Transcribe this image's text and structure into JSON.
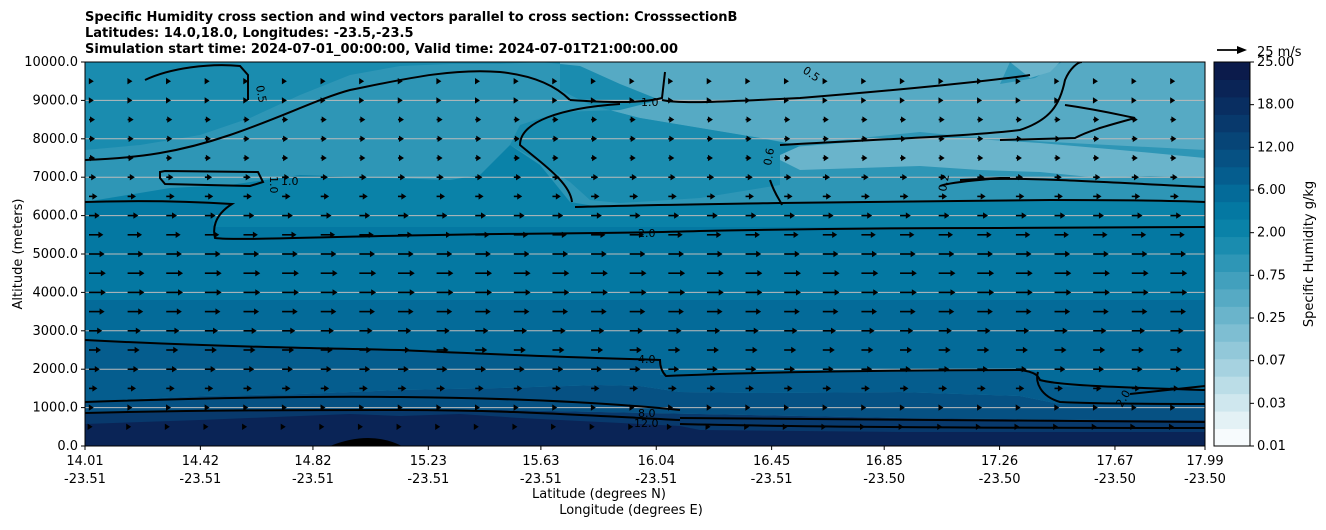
{
  "chart_data": {
    "type": "heatmap",
    "subtype": "filled-contour cross section with line contours and wind vectors",
    "title_lines": [
      "Specific Humidity cross section and wind vectors parallel to cross section: CrosssectionB",
      "Latitudes: 14.0,18.0, Longitudes: -23.5,-23.5",
      "Simulation start time: 2024-07-01_00:00:00, Valid time: 2024-07-01T21:00:00.00"
    ],
    "xlabel_lines": [
      "Latitude (degrees N)",
      "Longitude (degrees E)"
    ],
    "ylabel": "Altitude (meters)",
    "ylim": [
      0,
      10000
    ],
    "xlim": [
      14.01,
      17.99
    ],
    "y_ticks": [
      "0.0",
      "1000.0",
      "2000.0",
      "3000.0",
      "4000.0",
      "5000.0",
      "6000.0",
      "7000.0",
      "8000.0",
      "9000.0",
      "10000.0"
    ],
    "x_ticks": [
      {
        "lat": "14.01",
        "lon": "-23.51"
      },
      {
        "lat": "14.42",
        "lon": "-23.51"
      },
      {
        "lat": "14.82",
        "lon": "-23.51"
      },
      {
        "lat": "15.23",
        "lon": "-23.51"
      },
      {
        "lat": "15.63",
        "lon": "-23.51"
      },
      {
        "lat": "16.04",
        "lon": "-23.51"
      },
      {
        "lat": "16.45",
        "lon": "-23.51"
      },
      {
        "lat": "16.85",
        "lon": "-23.50"
      },
      {
        "lat": "17.26",
        "lon": "-23.50"
      },
      {
        "lat": "17.67",
        "lon": "-23.50"
      },
      {
        "lat": "17.99",
        "lon": "-23.50"
      }
    ],
    "grid": "horizontal",
    "colorbar": {
      "label": "Specific Humidity g/kg",
      "levels": [
        0.01,
        0.02,
        0.03,
        0.05,
        0.07,
        0.1,
        0.25,
        0.4,
        0.5,
        0.75,
        1.0,
        1.5,
        2.0,
        3.0,
        4.0,
        6.0,
        8.0,
        10.0,
        12.0,
        15.0,
        18.0,
        20.0,
        25.0
      ],
      "tick_labels": [
        "0.01",
        "0.03",
        "0.07",
        "0.25",
        "0.75",
        "2.00",
        "6.00",
        "12.00",
        "18.00",
        "25.00"
      ],
      "colors": [
        "#f7fbfd",
        "#e3f1f5",
        "#cfe7ee",
        "#bbdde7",
        "#a6d2e0",
        "#92c8d9",
        "#7ebed2",
        "#6ab4cb",
        "#56aac4",
        "#42a0bd",
        "#2e96b6",
        "#1a8caf",
        "#0a82a8",
        "#0478a2",
        "#046b99",
        "#055d8e",
        "#065183",
        "#074577",
        "#08396c",
        "#092e61",
        "#0a2456",
        "#0b1b4b"
      ]
    },
    "quiver_key": {
      "label": "25 m/s",
      "value": 25
    },
    "contour_labels": [
      "0.5",
      "0.5",
      "1.0",
      "1.0",
      "1.0",
      "0.6",
      "0.2",
      "2.0",
      "4.0",
      "8.0",
      "12.0",
      "2.0"
    ],
    "wind_u_by_altitude_m_s": [
      {
        "altitude": 500,
        "u": 3
      },
      {
        "altitude": 1000,
        "u": 4
      },
      {
        "altitude": 1500,
        "u": 7
      },
      {
        "altitude": 2000,
        "u": 9
      },
      {
        "altitude": 2500,
        "u": 10
      },
      {
        "altitude": 3000,
        "u": 11
      },
      {
        "altitude": 3500,
        "u": 13
      },
      {
        "altitude": 4000,
        "u": 14
      },
      {
        "altitude": 4500,
        "u": 14
      },
      {
        "altitude": 5000,
        "u": 13
      },
      {
        "altitude": 5500,
        "u": 12
      },
      {
        "altitude": 6000,
        "u": 9
      },
      {
        "altitude": 6500,
        "u": 7
      },
      {
        "altitude": 7000,
        "u": 6
      },
      {
        "altitude": 7500,
        "u": 5
      },
      {
        "altitude": 8000,
        "u": 5
      },
      {
        "altitude": 8500,
        "u": 5
      },
      {
        "altitude": 9000,
        "u": 4
      },
      {
        "altitude": 9500,
        "u": 4
      }
    ]
  }
}
